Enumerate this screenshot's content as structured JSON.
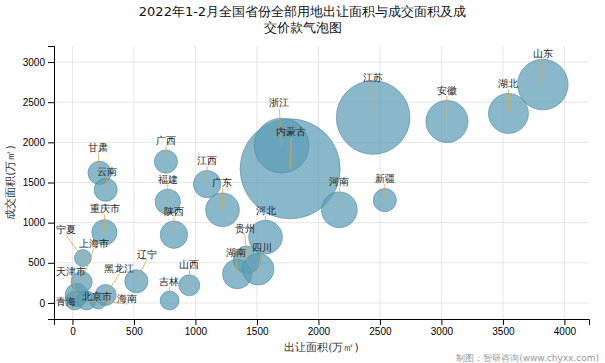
{
  "chart_data": {
    "type": "bubble",
    "title": "2022年1-2月全国省份全部用地出让面积与成交面积及成\n交价款气泡图",
    "xlabel": "出让面积(万㎡)",
    "ylabel": "成交面积(万㎡)",
    "source": "制图：智研咨询(www.chyxx.com)",
    "color": "#5b9db5",
    "grid": true,
    "xlim": [
      -150,
      4200
    ],
    "ylim": [
      -200,
      3200
    ],
    "xticks": [
      0,
      500,
      1000,
      1500,
      2000,
      2500,
      3000,
      3500,
      4000
    ],
    "yticks": [
      0,
      500,
      1000,
      1500,
      2000,
      2500,
      3000
    ],
    "labels": [
      "青海",
      "天津市",
      "上海市",
      "宁夏",
      "北京市",
      "海南",
      "黑龙江",
      "甘肃",
      "云南",
      "重庆市",
      "辽宁",
      "吉林",
      "山西",
      "广西",
      "福建",
      "陕西",
      "内蒙古",
      "江西",
      "广东",
      "湖南",
      "贵州",
      "四川",
      "河北",
      "浙江",
      "河南",
      "新疆",
      "江苏",
      "安徽",
      "湖北",
      "山东"
    ],
    "x": [
      18,
      35,
      75,
      85,
      115,
      210,
      270,
      220,
      270,
      260,
      520,
      790,
      950,
      760,
      775,
      825,
      1770,
      1095,
      1220,
      1340,
      1420,
      1510,
      1570,
      1700,
      2170,
      2540,
      2445,
      3045,
      3545,
      3825
    ],
    "values": [
      30,
      100,
      260,
      560,
      30,
      30,
      100,
      1620,
      1410,
      880,
      270,
      30,
      220,
      1760,
      1260,
      850,
      1670,
      1480,
      1160,
      360,
      540,
      420,
      820,
      1960,
      1160,
      1280,
      2310,
      2260,
      2360,
      2720
    ],
    "sizes": [
      18,
      22,
      20,
      16,
      18,
      16,
      20,
      22,
      22,
      24,
      22,
      18,
      20,
      22,
      24,
      26,
      95,
      26,
      32,
      28,
      26,
      30,
      32,
      52,
      34,
      22,
      70,
      40,
      38,
      48
    ]
  }
}
